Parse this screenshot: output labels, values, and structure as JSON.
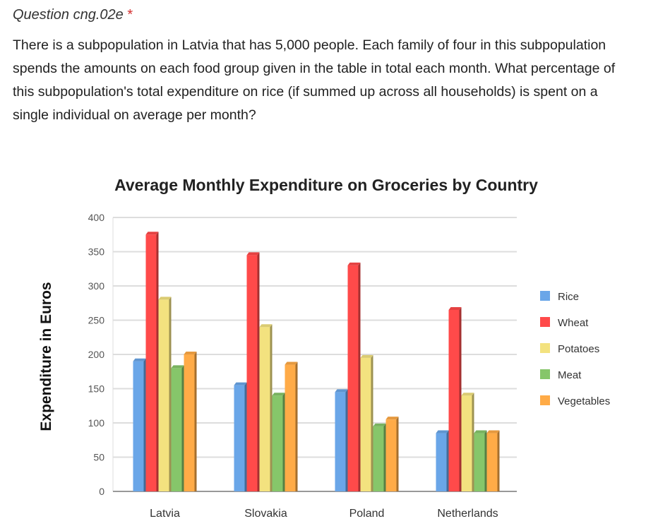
{
  "question": {
    "title": "Question cng.02e",
    "required_mark": "*",
    "text": "There is a subpopulation in Latvia that has 5,000 people. Each family of four in this subpopulation spends the amounts on each food group given in the table in total each month. What percentage of this subpopulation's total expenditure on rice (if summed up across all households) is spent on a single individual on average per month?"
  },
  "chart_data": {
    "type": "bar",
    "title": "Average Monthly Expenditure on Groceries by Country",
    "xlabel": "",
    "ylabel": "Expenditure in Euros",
    "ylim": [
      0,
      400
    ],
    "yticks": [
      0,
      50,
      100,
      150,
      200,
      250,
      300,
      350,
      400
    ],
    "grid": true,
    "legend_position": "right",
    "categories": [
      "Latvia",
      "Slovakia",
      "Poland",
      "Netherlands"
    ],
    "series": [
      {
        "name": "Rice",
        "color": "#6aa6e8",
        "values": [
          190,
          155,
          145,
          85
        ]
      },
      {
        "name": "Wheat",
        "color": "#ff4a4a",
        "values": [
          375,
          345,
          330,
          265
        ]
      },
      {
        "name": "Potatoes",
        "color": "#f3e27f",
        "values": [
          280,
          240,
          195,
          140
        ]
      },
      {
        "name": "Meat",
        "color": "#86c66a",
        "values": [
          180,
          140,
          95,
          85
        ]
      },
      {
        "name": "Vegetables",
        "color": "#ffab47",
        "values": [
          200,
          185,
          105,
          85
        ]
      }
    ]
  }
}
